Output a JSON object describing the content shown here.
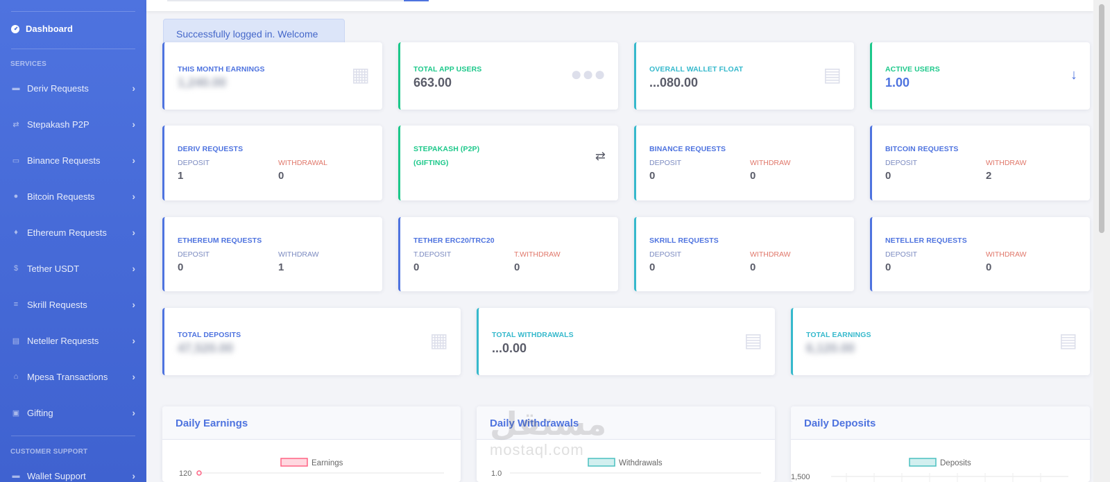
{
  "sidebar": {
    "dashboard_label": "Dashboard",
    "services_heading": "SERVICES",
    "items": [
      {
        "label": "Deriv Requests",
        "icon": "money-bill-icon"
      },
      {
        "label": "Stepakash P2P",
        "icon": "exchange-icon"
      },
      {
        "label": "Binance Requests",
        "icon": "credit-card-icon"
      },
      {
        "label": "Bitcoin Requests",
        "icon": "coin-icon"
      },
      {
        "label": "Ethereum Requests",
        "icon": "ethereum-icon"
      },
      {
        "label": "Tether USDT",
        "icon": "dollar-icon"
      },
      {
        "label": "Skrill Requests",
        "icon": "coins-icon"
      },
      {
        "label": "Neteller Requests",
        "icon": "list-icon"
      },
      {
        "label": "Mpesa Transactions",
        "icon": "bank-icon"
      },
      {
        "label": "Gifting",
        "icon": "gift-icon"
      }
    ],
    "support_heading": "CUSTOMER SUPPORT",
    "support_items": [
      {
        "label": "Wallet Support",
        "icon": "wallet-icon"
      }
    ]
  },
  "alert": {
    "text": "Successfully logged in. Welcome"
  },
  "stats": {
    "month_earnings": {
      "title": "THIS MONTH EARNINGS",
      "value": "1,240.00"
    },
    "app_users": {
      "title": "TOTAL APP USERS",
      "value": "663.00"
    },
    "wallet_float": {
      "title": "OVERALL WALLET FLOAT",
      "value": "...080.00"
    },
    "active_users": {
      "title": "ACTIVE USERS",
      "value": "1.00"
    }
  },
  "requests": {
    "deriv": {
      "title": "DERIV REQUESTS",
      "label1": "DEPOSIT",
      "label2": "WITHDRAWAL",
      "value1": "1",
      "value2": "0"
    },
    "stepakash": {
      "title": "STEPAKASH (P2P)",
      "subtitle": "(GIFTING)"
    },
    "binance": {
      "title": "BINANCE REQUESTS",
      "label1": "DEPOSIT",
      "label2": "WITHDRAW",
      "value1": "0",
      "value2": "0"
    },
    "bitcoin": {
      "title": "BITCOIN REQUESTS",
      "label1": "DEPOSIT",
      "label2": "WITHDRAW",
      "value1": "0",
      "value2": "2"
    },
    "ethereum": {
      "title": "ETHEREUM REQUESTS",
      "label1": "DEPOSIT",
      "label2": "WITHDRAW",
      "value1": "0",
      "value2": "1"
    },
    "tether": {
      "title": "TETHER ERC20/TRC20",
      "label1": "T.DEPOSIT",
      "label2": "T.WITHDRAW",
      "value1": "0",
      "value2": "0"
    },
    "skrill": {
      "title": "SKRILL REQUESTS",
      "label1": "DEPOSIT",
      "label2": "WITHDRAW",
      "value1": "0",
      "value2": "0"
    },
    "neteller": {
      "title": "NETELLER REQUESTS",
      "label1": "DEPOSIT",
      "label2": "WITHDRAW",
      "value1": "0",
      "value2": "0"
    }
  },
  "totals": {
    "deposits": {
      "title": "TOTAL DEPOSITS",
      "value": "47,520.00"
    },
    "withdrawals": {
      "title": "TOTAL WITHDRAWALS",
      "value": "...0.00"
    },
    "earnings": {
      "title": "TOTAL EARNINGS",
      "value": "6,120.00"
    }
  },
  "charts": {
    "earnings": {
      "title": "Daily Earnings",
      "legend": "Earnings",
      "first_tick": "120",
      "color": "#ff6384"
    },
    "withdrawals": {
      "title": "Daily Withdrawals",
      "legend": "Withdrawals",
      "first_tick": "1.0",
      "color": "#4bc0c0"
    },
    "deposits": {
      "title": "Daily Deposits",
      "legend": "Deposits",
      "first_tick": "1,500",
      "color": "#4bc0c0"
    }
  },
  "watermark": {
    "arabic": "مستقل",
    "latin": "mostaql.com"
  }
}
